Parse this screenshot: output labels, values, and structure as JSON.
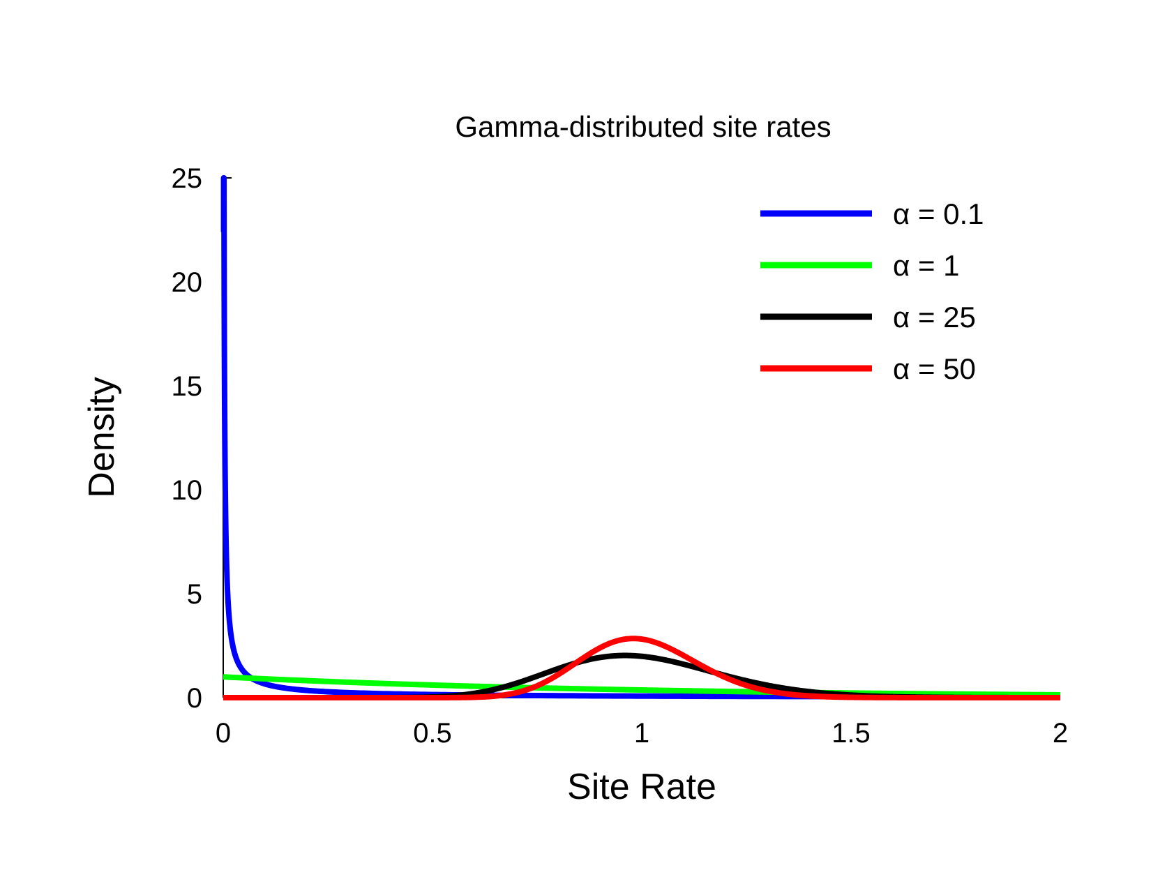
{
  "chart_data": {
    "type": "line",
    "title": "Gamma-distributed site rates",
    "xlabel": "Site Rate",
    "ylabel": "Density",
    "xlim": [
      0,
      2
    ],
    "ylim": [
      0,
      25
    ],
    "x_ticks": [
      "0",
      "0.5",
      "1",
      "1.5",
      "2"
    ],
    "y_ticks": [
      "0",
      "5",
      "10",
      "15",
      "20",
      "25"
    ],
    "grid": false,
    "legend_position": "top-right",
    "series": [
      {
        "name": "α = 0.1",
        "color": "#0000ff",
        "shape": 0.1,
        "x": [
          0.001,
          0.002,
          0.005,
          0.01,
          0.02,
          0.03,
          0.05,
          0.08,
          0.1,
          0.15,
          0.2,
          0.3,
          0.4,
          0.5,
          0.7,
          1.0,
          1.3,
          1.6,
          2.0
        ],
        "y": [
          22.4,
          11.9,
          5.1,
          2.7,
          1.42,
          0.98,
          0.6,
          0.39,
          0.31,
          0.21,
          0.16,
          0.1,
          0.072,
          0.053,
          0.031,
          0.016,
          0.008,
          0.004,
          0.002
        ]
      },
      {
        "name": "α = 1",
        "color": "#00ff00",
        "shape": 1,
        "x": [
          0,
          0.25,
          0.5,
          0.75,
          1.0,
          1.25,
          1.5,
          1.75,
          2.0
        ],
        "y": [
          1.0,
          0.78,
          0.61,
          0.47,
          0.37,
          0.29,
          0.22,
          0.17,
          0.14
        ]
      },
      {
        "name": "α = 25",
        "color": "#000000",
        "shape": 25,
        "x": [
          0,
          0.3,
          0.4,
          0.5,
          0.6,
          0.7,
          0.8,
          0.9,
          0.96,
          1.0,
          1.1,
          1.2,
          1.3,
          1.4,
          1.5,
          1.6,
          1.8,
          2.0
        ],
        "y": [
          0,
          0.002,
          0.02,
          0.11,
          0.39,
          0.91,
          1.52,
          1.92,
          1.99,
          1.97,
          1.72,
          1.27,
          0.82,
          0.47,
          0.25,
          0.12,
          0.02,
          0.003
        ],
        "peak": {
          "x": 0.96,
          "y": 1.99
        }
      },
      {
        "name": "α = 50",
        "color": "#ff0000",
        "shape": 50,
        "x": [
          0,
          0.5,
          0.6,
          0.7,
          0.8,
          0.9,
          0.98,
          1.0,
          1.1,
          1.2,
          1.3,
          1.4,
          1.5,
          1.6,
          2.0
        ],
        "y": [
          0,
          0.004,
          0.07,
          0.42,
          1.38,
          2.5,
          2.82,
          2.81,
          2.11,
          1.07,
          0.39,
          0.11,
          0.025,
          0.005,
          0.0
        ],
        "peak": {
          "x": 0.98,
          "y": 2.82
        }
      }
    ]
  }
}
